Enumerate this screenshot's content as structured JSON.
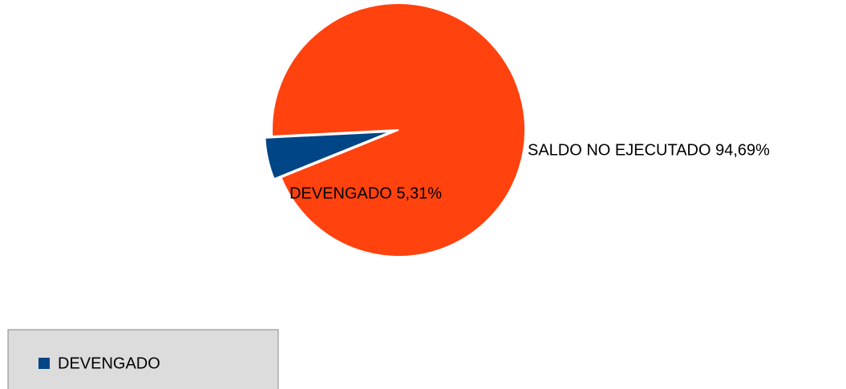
{
  "chart_data": {
    "type": "pie",
    "categories": [
      "DEVENGADO",
      "SALDO NO EJECUTADO"
    ],
    "values": [
      5.31,
      94.69
    ],
    "value_labels": [
      "DEVENGADO 5,31%",
      "SALDO NO EJECUTADO 94,69%"
    ],
    "colors": [
      "#004586",
      "#ff420e"
    ],
    "legend": "bottom-left"
  }
}
